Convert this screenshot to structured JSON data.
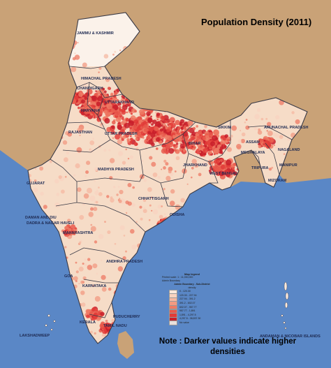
{
  "title": "Population Density (2011)",
  "note_line1": "Note : Darker values indicate higher",
  "note_line2": "densities",
  "colors": {
    "sea": "#5a87c6",
    "neighbours": "#c9a277",
    "base_land": "#f6dcc7",
    "low_density": "#f4b7a2",
    "high_density": "#e6303a",
    "boundary": "#3a3a46"
  },
  "states": [
    "JAMMU & KASHMIR",
    "HIMACHAL PRADESH",
    "CHANDIGARH",
    "UTTARAKHAND",
    "HARYANA",
    "RAJASTHAN",
    "UTTAR PRADESH",
    "BIHAR",
    "SIKKIM",
    "ARUNACHAL PRADESH",
    "ASSAM",
    "NAGALAND",
    "MEGHALAYA",
    "MANIPUR",
    "MIZORAM",
    "TRIPURA",
    "JHARKHAND",
    "WEST BENGAL",
    "MADHYA PRADESH",
    "GUJARAT",
    "CHHATTISGARH",
    "ODISHA",
    "DAMAN AND DIU",
    "DADRA & NAGAR HAVELI",
    "MAHARASHTRA",
    "ANDHRA PRADESH",
    "GOA",
    "KARNATAKA",
    "PUDUCHERRY",
    "TAMIL NADU",
    "KERALA",
    "LAKSHADWEEP",
    "ANDAMAN & NICOBAR ISLANDS"
  ],
  "legend": {
    "title": "Map legend",
    "line1": "Printed scale: 1 : 11,000,000",
    "line2": "Admin Boundary",
    "sub": "Admin Boundary - Sub-District",
    "unit": "density",
    "classes": [
      {
        "label": "0 - 120.30",
        "color": "#fbe9dc"
      },
      {
        "label": "120.30 - 227.94",
        "color": "#f8d3c0"
      },
      {
        "label": "227.94 - 391.2",
        "color": "#f5b8a2"
      },
      {
        "label": "391.2 - 602.07",
        "color": "#f29a82"
      },
      {
        "label": "602.07 - 957.77",
        "color": "#ee7a64"
      },
      {
        "label": "957.77 - 1,891",
        "color": "#e95a4c"
      },
      {
        "label": "1,891 - 4,297.5",
        "color": "#e23c38"
      },
      {
        "label": "4,297.5 - 38,837.30",
        "color": "#c81f2a"
      },
      {
        "label": "No value",
        "color": "#e9e0dc"
      }
    ]
  }
}
